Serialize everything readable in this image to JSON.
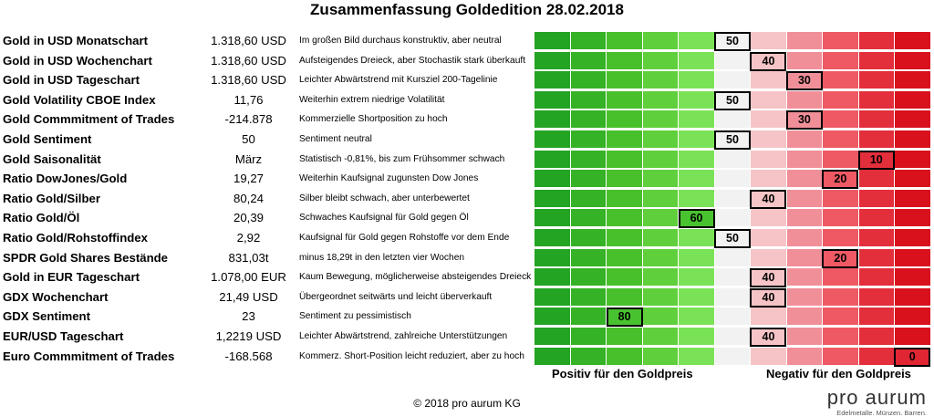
{
  "title": "Zusammenfassung Goldedition 28.02.2018",
  "legend": {
    "positive": "Positiv für den Goldpreis",
    "negative": "Negativ für den Goldpreis"
  },
  "footer": "© 2018 pro aurum KG",
  "logo": {
    "name": "pro aurum",
    "tagline": "Edelmetalle. Münzen. Barren."
  },
  "colors": {
    "scale": [
      "#23a423",
      "#35b225",
      "#48c02b",
      "#5fcf3b",
      "#7ae256",
      "#f2f2f2",
      "#f6c4c6",
      "#f18f99",
      "#ee5964",
      "#e32e3b",
      "#d8111d"
    ],
    "score_light": "#f2f2f2",
    "score_green": "#49c22f",
    "score_red": "#e02533"
  },
  "chart_data": {
    "type": "table",
    "title": "Zusammenfassung Goldedition 28.02.2018",
    "scale": {
      "min": 0,
      "max": 100,
      "steps": 11,
      "left_label": "Positiv für den Goldpreis",
      "right_label": "Negativ für den Goldpreis"
    },
    "rows": [
      {
        "label": "Gold in USD Monatschart",
        "value": "1.318,60 USD",
        "comment": "Im großen Bild durchaus konstruktiv,  aber neutral",
        "score": 50
      },
      {
        "label": "Gold in USD Wochenchart",
        "value": "1.318,60 USD",
        "comment": "Aufsteigendes Dreieck, aber Stochastik stark überkauft",
        "score": 40
      },
      {
        "label": "Gold in USD Tageschart",
        "value": "1.318,60 USD",
        "comment": "Leichter Abwärtstrend mit Kursziel 200-Tagelinie",
        "score": 30
      },
      {
        "label": "Gold Volatility CBOE Index",
        "value": "11,76",
        "comment": "Weiterhin extrem niedrige Volatilität",
        "score": 50
      },
      {
        "label": "Gold Commmitment of Trades",
        "value": "-214.878",
        "comment": "Kommerzielle Shortposition zu hoch",
        "score": 30
      },
      {
        "label": "Gold Sentiment",
        "value": "50",
        "comment": "Sentiment neutral",
        "score": 50
      },
      {
        "label": "Gold Saisonalität",
        "value": "März",
        "comment": "Statistisch -0,81%, bis zum Frühsommer schwach",
        "score": 10
      },
      {
        "label": "Ratio DowJones/Gold",
        "value": "19,27",
        "comment": "Weiterhin Kaufsignal zugunsten Dow Jones",
        "score": 20
      },
      {
        "label": "Ratio Gold/Silber",
        "value": "80,24",
        "comment": "Silber bleibt schwach, aber unterbewertet",
        "score": 40
      },
      {
        "label": "Ratio Gold/Öl",
        "value": "20,39",
        "comment": "Schwaches Kaufsignal für Gold gegen Öl",
        "score": 60
      },
      {
        "label": "Ratio Gold/Rohstoffindex",
        "value": "2,92",
        "comment": "Kaufsignal für Gold gegen Rohstoffe vor dem Ende",
        "score": 50
      },
      {
        "label": "SPDR Gold Shares Bestände",
        "value": "831,03t",
        "comment": "minus 18,29t in den letzten vier Wochen",
        "score": 20
      },
      {
        "label": "Gold in EUR Tageschart",
        "value": "1.078,00 EUR",
        "comment": "Kaum Bewegung, möglicherweise absteigendes Dreieck",
        "score": 40
      },
      {
        "label": "GDX Wochenchart",
        "value": "21,49 USD",
        "comment": "Übergeordnet seitwärts und leicht überverkauft",
        "score": 40
      },
      {
        "label": "GDX Sentiment",
        "value": "23",
        "comment": "Sentiment zu pessimistisch",
        "score": 80
      },
      {
        "label": "EUR/USD Tageschart",
        "value": "1,2219 USD",
        "comment": "Leichter Abwärtstrend, zahlreiche Unterstützungen",
        "score": 40
      },
      {
        "label": "Euro Commmitment of Trades",
        "value": "-168.568",
        "comment": "Kommerz. Short-Position leicht reduziert, aber zu hoch",
        "score": 0
      }
    ]
  }
}
